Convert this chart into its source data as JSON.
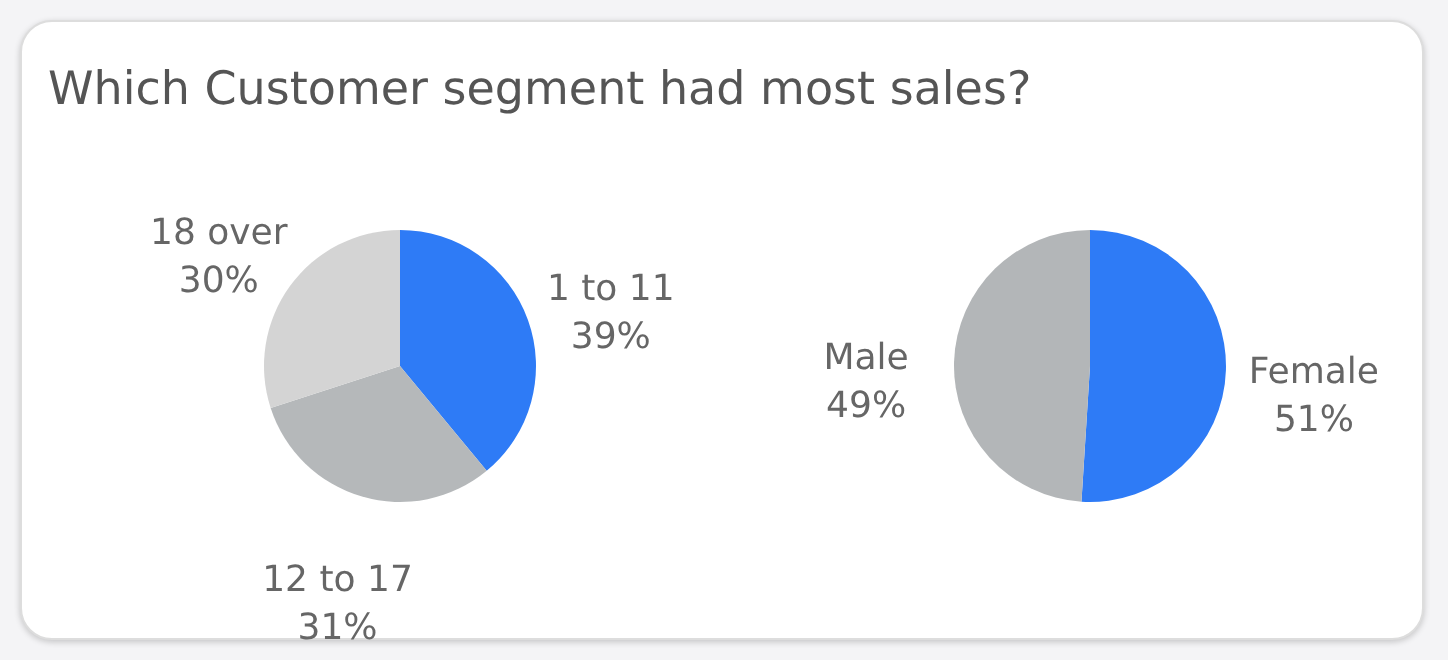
{
  "chart_data": [
    {
      "type": "pie",
      "title": "Which Customer segment had most sales?",
      "categories": [
        "1 to 11",
        "12 to 17",
        "18 over"
      ],
      "values": [
        39,
        31,
        30
      ],
      "value_labels": [
        "39%",
        "31%",
        "30%"
      ],
      "colors": [
        "#2e7bf6",
        "#b5b8ba",
        "#d4d4d4"
      ]
    },
    {
      "type": "pie",
      "categories": [
        "Female",
        "Male"
      ],
      "values": [
        51,
        49
      ],
      "value_labels": [
        "51%",
        "49%"
      ],
      "colors": [
        "#2e7bf6",
        "#b3b6b8"
      ]
    }
  ]
}
